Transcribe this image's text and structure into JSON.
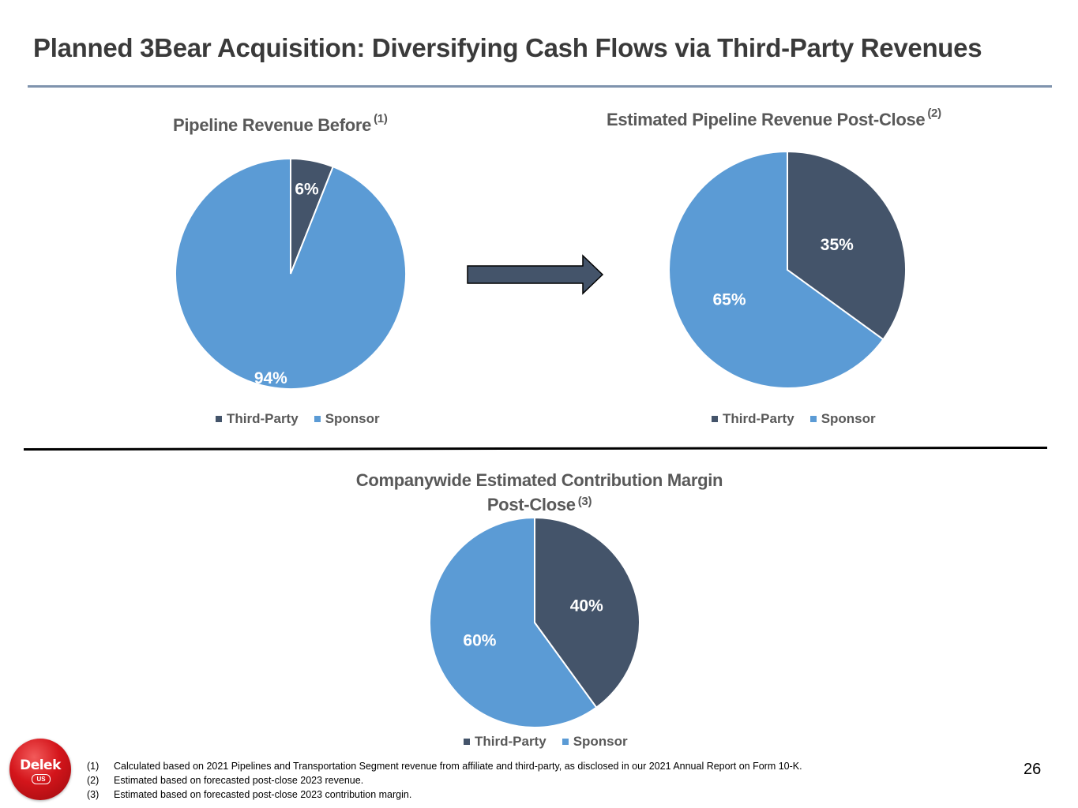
{
  "slide": {
    "title": "Planned 3Bear Acquisition: Diversifying Cash Flows via Third-Party Revenues",
    "page_number": "26",
    "logo": {
      "brand": "Delek",
      "sub": "US"
    }
  },
  "colors": {
    "third_party": "#44546a",
    "sponsor": "#5b9bd5"
  },
  "chart_data": [
    {
      "type": "pie",
      "id": "before",
      "title": "Pipeline Revenue Before",
      "title_note": "(1)",
      "categories": [
        "Third-Party",
        "Sponsor"
      ],
      "values": [
        6,
        94
      ],
      "labels": [
        "6%",
        "94%"
      ],
      "legend": [
        "Third-Party",
        "Sponsor"
      ],
      "legend_position": "bottom"
    },
    {
      "type": "pie",
      "id": "post_close",
      "title": "Estimated Pipeline Revenue Post-Close",
      "title_note": "(2)",
      "categories": [
        "Third-Party",
        "Sponsor"
      ],
      "values": [
        35,
        65
      ],
      "labels": [
        "35%",
        "65%"
      ],
      "legend": [
        "Third-Party",
        "Sponsor"
      ],
      "legend_position": "bottom"
    },
    {
      "type": "pie",
      "id": "margin",
      "title": "Companywide Estimated Contribution Margin",
      "title_line2": "Post-Close",
      "title_note": "(3)",
      "categories": [
        "Third-Party",
        "Sponsor"
      ],
      "values": [
        40,
        60
      ],
      "labels": [
        "40%",
        "60%"
      ],
      "legend": [
        "Third-Party",
        "Sponsor"
      ],
      "legend_position": "bottom"
    }
  ],
  "footnotes": [
    {
      "num": "(1)",
      "text": "Calculated based on 2021 Pipelines and Transportation Segment revenue from affiliate and third-party, as disclosed in our 2021 Annual Report on Form 10-K."
    },
    {
      "num": "(2)",
      "text": "Estimated based on forecasted post-close 2023 revenue."
    },
    {
      "num": "(3)",
      "text": "Estimated based on forecasted post-close 2023 contribution margin."
    }
  ]
}
